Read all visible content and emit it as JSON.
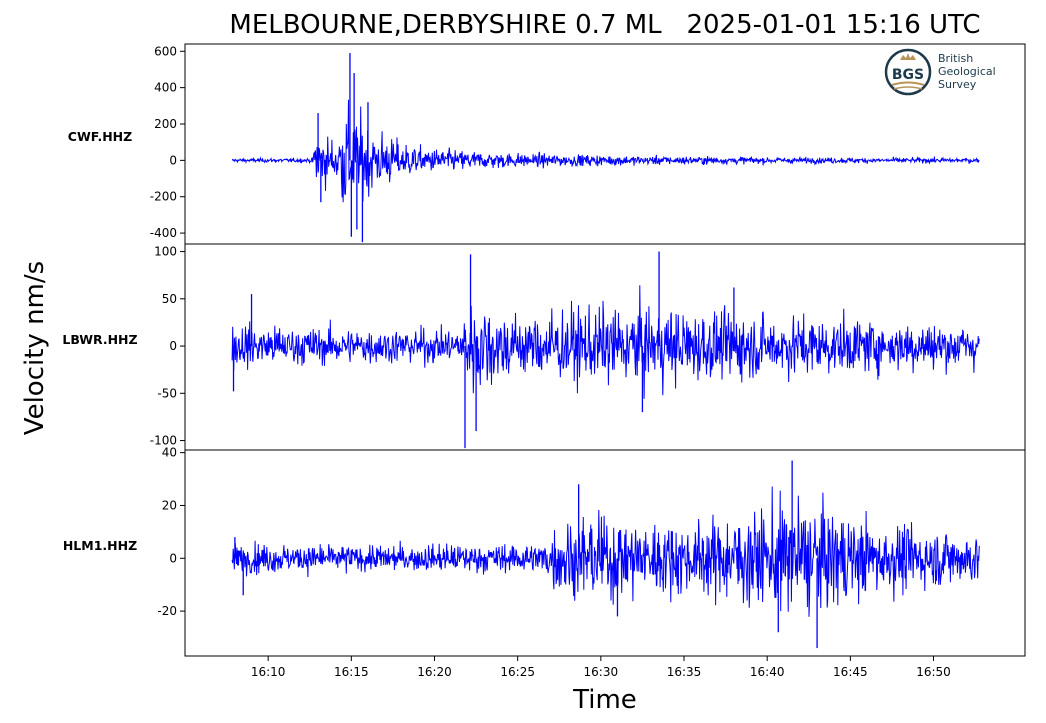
{
  "chart_data": {
    "type": "line",
    "title": "MELBOURNE,DERBYSHIRE 0.7 ML   2025-01-01 15:16 UTC",
    "xlabel": "Time",
    "ylabel": "Velocity nm/s",
    "x_ticks": [
      "16:10",
      "16:15",
      "16:20",
      "16:25",
      "16:30",
      "16:35",
      "16:40",
      "16:45",
      "16:50"
    ],
    "xlim": [
      "16:05:00",
      "16:55:30"
    ],
    "line_color": "#0000ff",
    "logo": {
      "mark": "BGS",
      "text": [
        "British",
        "Geological",
        "Survey"
      ]
    },
    "series": [
      {
        "name": "CWF.HHZ",
        "ylim": [
          -460,
          640
        ],
        "y_ticks": [
          600,
          400,
          200,
          0,
          -200,
          -400
        ],
        "y_tick_labels": [
          "600",
          "400",
          "200",
          "0",
          "-200",
          "-400"
        ],
        "trace": {
          "start": "16:07:50",
          "end": "16:52:45",
          "envelope": [
            [
              "16:07:50",
              12
            ],
            [
              "16:12:40",
              15
            ],
            [
              "16:12:50",
              200
            ],
            [
              "16:14:00",
              140
            ],
            [
              "16:14:50",
              420
            ],
            [
              "16:15:10",
              300
            ],
            [
              "16:16:00",
              250
            ],
            [
              "16:17:30",
              150
            ],
            [
              "16:19:00",
              90
            ],
            [
              "16:22:00",
              65
            ],
            [
              "16:26:00",
              45
            ],
            [
              "16:32:00",
              32
            ],
            [
              "16:40:00",
              22
            ],
            [
              "16:46:00",
              18
            ],
            [
              "16:52:45",
              16
            ]
          ],
          "peaks": [
            [
              "16:13:00",
              260
            ],
            [
              "16:14:55",
              590
            ],
            [
              "16:15:00",
              -420
            ],
            [
              "16:15:10",
              480
            ],
            [
              "16:15:40",
              -450
            ],
            [
              "16:15:20",
              -380
            ],
            [
              "16:16:00",
              320
            ],
            [
              "16:13:10",
              -230
            ]
          ]
        }
      },
      {
        "name": "LBWR.HHZ",
        "ylim": [
          -110,
          108
        ],
        "y_ticks": [
          100,
          50,
          0,
          -50,
          -100
        ],
        "y_tick_labels": [
          "100",
          "50",
          "0",
          "-50",
          "-100"
        ],
        "trace": {
          "start": "16:07:50",
          "end": "16:52:45",
          "envelope": [
            [
              "16:07:50",
              30
            ],
            [
              "16:12:00",
              24
            ],
            [
              "16:21:40",
              22
            ],
            [
              "16:21:50",
              55
            ],
            [
              "16:22:30",
              62
            ],
            [
              "16:25:00",
              40
            ],
            [
              "16:28:00",
              48
            ],
            [
              "16:33:00",
              52
            ],
            [
              "16:37:00",
              44
            ],
            [
              "16:41:00",
              40
            ],
            [
              "16:46:00",
              34
            ],
            [
              "16:52:45",
              28
            ]
          ],
          "peaks": [
            [
              "16:07:55",
              -48
            ],
            [
              "16:09:00",
              55
            ],
            [
              "16:21:50",
              -108
            ],
            [
              "16:22:10",
              97
            ],
            [
              "16:22:30",
              -90
            ],
            [
              "16:33:30",
              100
            ],
            [
              "16:32:30",
              -70
            ],
            [
              "16:38:00",
              62
            ]
          ]
        }
      },
      {
        "name": "HLM1.HHZ",
        "ylim": [
          -37,
          41
        ],
        "y_ticks": [
          40,
          20,
          0,
          -20
        ],
        "y_tick_labels": [
          "40",
          "20",
          "0",
          "-20"
        ],
        "trace": {
          "start": "16:07:50",
          "end": "16:52:45",
          "envelope": [
            [
              "16:07:50",
              7
            ],
            [
              "16:16:00",
              6
            ],
            [
              "16:26:30",
              7
            ],
            [
              "16:27:30",
              17
            ],
            [
              "16:30:00",
              20
            ],
            [
              "16:35:00",
              16
            ],
            [
              "16:38:00",
              19
            ],
            [
              "16:40:00",
              26
            ],
            [
              "16:42:00",
              27
            ],
            [
              "16:45:00",
              20
            ],
            [
              "16:48:00",
              15
            ],
            [
              "16:52:45",
              12
            ]
          ],
          "peaks": [
            [
              "16:08:00",
              8
            ],
            [
              "16:08:30",
              -14
            ],
            [
              "16:28:40",
              28
            ],
            [
              "16:41:30",
              37
            ],
            [
              "16:43:00",
              -34
            ],
            [
              "16:40:40",
              -28
            ],
            [
              "16:31:00",
              -22
            ]
          ]
        }
      }
    ]
  }
}
